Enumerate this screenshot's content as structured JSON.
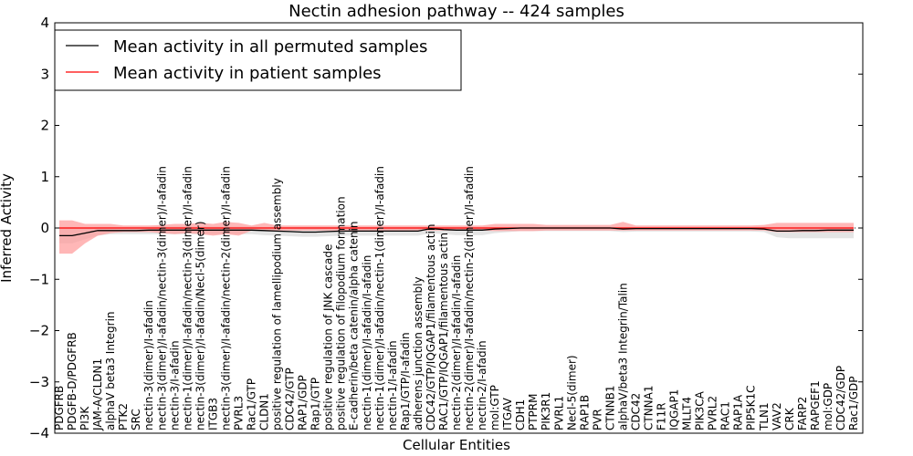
{
  "chart_data": {
    "type": "line",
    "title": "Nectin adhesion pathway -- 424 samples",
    "xlabel": "Cellular Entities",
    "ylabel": "Inferred Activity",
    "ylim": [
      -4,
      4
    ],
    "yticks": [
      -4,
      -3,
      -2,
      -1,
      0,
      1,
      2,
      3,
      4
    ],
    "ytick_labels": [
      "−4",
      "−3",
      "−2",
      "−1",
      "0",
      "1",
      "2",
      "3",
      "4"
    ],
    "legend_position": "top-left",
    "categories": [
      "PDGFRB",
      "PDGFB-D/PDGFRB",
      "PI3K",
      "JAM-A/CLDN1",
      "alphaV beta3 Integrin",
      "PTK2",
      "SRC",
      "nectin-3(dimer)/I-afadin",
      "nectin-3(dimer)/I-afadin/nectin-3(dimer)/I-afadin",
      "nectin-3/I-afadin",
      "nectin-1(dimer)/I-afadin/nectin-3(dimer)/I-afadin",
      "nectin-3(dimer)/I-afadin/Necl-5(dimer)",
      "ITGB3",
      "nectin-3(dimer)/I-afadin/nectin-2(dimer)/I-afadin",
      "PVRL3",
      "Rac1/GTP",
      "CLDN1",
      "positive regulation of lamellipodium assembly",
      "CDC42/GTP",
      "RAP1/GDP",
      "Rap1/GTP",
      "positive regulation of JNK cascade",
      "positive regulation of filopodium formation",
      "E-cadherin/beta catenin/alpha catenin",
      "nectin-1(dimer)/I-afadin/I-afadin",
      "nectin-1(dimer)/I-afadin/nectin-1(dimer)/I-afadin",
      "nectin-1/I-afadin",
      "Rap1/GTP/I-afadin",
      "adherens junction assembly",
      "CDC42/GTP/IQGAP1/filamentous actin",
      "RAC1/GTP/IQGAP1/filamentous actin",
      "nectin-2(dimer)/I-afadin/I-afadin",
      "nectin-2(dimer)/I-afadin/nectin-2(dimer)/I-afadin",
      "nectin-2/I-afadin",
      "mol:GTP",
      "ITGAV",
      "CDH1",
      "PTPRM",
      "PIK3R1",
      "PVRL1",
      "Necl-5(dimer)",
      "RAP1B",
      "PVR",
      "CTNNB1",
      "alphaV/beta3 Integrin/Talin",
      "CDC42",
      "CTNNA1",
      "F11R",
      "IQGAP1",
      "MLLT4",
      "PIK3CA",
      "PVRL2",
      "RAC1",
      "RAP1A",
      "PIP5K1C",
      "TLN1",
      "VAV2",
      "CRK",
      "FARP2",
      "RAPGEF1",
      "mol:GDP",
      "CDC42/GDP",
      "Rac1/GDP"
    ],
    "series": [
      {
        "name": "Mean activity in all permuted samples",
        "color": "#000000",
        "values": [
          -0.15,
          -0.15,
          -0.1,
          -0.05,
          -0.05,
          -0.05,
          -0.05,
          -0.04,
          -0.04,
          -0.04,
          -0.04,
          -0.04,
          -0.04,
          -0.04,
          -0.04,
          -0.04,
          -0.05,
          -0.06,
          -0.07,
          -0.08,
          -0.08,
          -0.07,
          -0.06,
          -0.06,
          -0.06,
          -0.06,
          -0.06,
          -0.06,
          -0.06,
          -0.01,
          -0.03,
          -0.04,
          -0.04,
          -0.04,
          -0.02,
          -0.01,
          0,
          0,
          0,
          0,
          0,
          0,
          0,
          0,
          -0.02,
          -0.01,
          -0.01,
          -0.01,
          -0.01,
          -0.01,
          -0.01,
          -0.01,
          -0.01,
          -0.01,
          -0.01,
          -0.02,
          -0.06,
          -0.06,
          -0.05,
          -0.05,
          -0.04,
          -0.04,
          -0.04
        ],
        "band_upper": [
          0.02,
          0.02,
          0.0,
          0.02,
          0.02,
          0.02,
          0.02,
          0.02,
          0.03,
          0.03,
          0.03,
          0.03,
          0.03,
          0.03,
          0.03,
          0.03,
          0.02,
          0.02,
          0.02,
          0.02,
          0.02,
          0.02,
          0.02,
          0.02,
          0.02,
          0.02,
          0.02,
          0.02,
          0.02,
          0.02,
          0.02,
          0.02,
          0.02,
          0.02,
          0.02,
          0.02,
          0.02,
          0.02,
          0.02,
          0.02,
          0.02,
          0.02,
          0.02,
          0.02,
          0.02,
          0.02,
          0.02,
          0.02,
          0.02,
          0.02,
          0.02,
          0.02,
          0.02,
          0.02,
          0.02,
          0.02,
          0.02,
          0.02,
          0.02,
          0.02,
          0.02,
          0.02,
          0.02
        ],
        "band_lower": [
          -0.3,
          -0.3,
          -0.22,
          -0.15,
          -0.12,
          -0.12,
          -0.12,
          -0.12,
          -0.12,
          -0.12,
          -0.12,
          -0.12,
          -0.12,
          -0.12,
          -0.12,
          -0.12,
          -0.14,
          -0.15,
          -0.16,
          -0.17,
          -0.17,
          -0.16,
          -0.15,
          -0.15,
          -0.15,
          -0.15,
          -0.15,
          -0.15,
          -0.15,
          -0.1,
          -0.12,
          -0.14,
          -0.14,
          -0.14,
          -0.1,
          -0.08,
          -0.06,
          -0.06,
          -0.06,
          -0.06,
          -0.06,
          -0.06,
          -0.06,
          -0.06,
          -0.08,
          -0.07,
          -0.07,
          -0.07,
          -0.07,
          -0.07,
          -0.07,
          -0.07,
          -0.07,
          -0.07,
          -0.07,
          -0.08,
          -0.18,
          -0.2,
          -0.2,
          -0.2,
          -0.2,
          -0.2,
          -0.2
        ]
      },
      {
        "name": "Mean activity in patient samples",
        "color": "#ff0000",
        "values": [
          0,
          0,
          0,
          0,
          0,
          0,
          0,
          0,
          0,
          0,
          0,
          0,
          0,
          0,
          0,
          0,
          0,
          0,
          0,
          0,
          0,
          0,
          0,
          0,
          0,
          0,
          0,
          0,
          0,
          0,
          0,
          0,
          0,
          0,
          0,
          0,
          0,
          0,
          0,
          0,
          0,
          0,
          0,
          0,
          0,
          0,
          0,
          0,
          0,
          0,
          0,
          0,
          0,
          0,
          0,
          0,
          0,
          0,
          0,
          0,
          0,
          0,
          0
        ],
        "band_upper": [
          0.15,
          0.15,
          0.08,
          0.08,
          0.08,
          0.05,
          0.05,
          0.05,
          0.06,
          0.08,
          0.08,
          0.1,
          0.08,
          0.12,
          0.1,
          0.05,
          0.1,
          0.05,
          0.05,
          0.05,
          0.05,
          0.05,
          0.05,
          0.05,
          0.05,
          0.05,
          0.05,
          0.05,
          0.05,
          0.05,
          0.05,
          0.05,
          0.05,
          0.05,
          0.08,
          0.08,
          0.08,
          0.08,
          0.06,
          0.06,
          0.06,
          0.06,
          0.06,
          0.06,
          0.12,
          0.05,
          0.05,
          0.05,
          0.05,
          0.05,
          0.05,
          0.05,
          0.05,
          0.05,
          0.05,
          0.06,
          0.1,
          0.1,
          0.1,
          0.1,
          0.1,
          0.1,
          0.1
        ],
        "band_lower": [
          -0.5,
          -0.5,
          -0.3,
          -0.15,
          -0.1,
          -0.08,
          -0.08,
          -0.08,
          -0.1,
          -0.12,
          -0.1,
          -0.12,
          -0.15,
          -0.12,
          -0.15,
          -0.05,
          -0.05,
          -0.05,
          -0.05,
          -0.05,
          -0.05,
          -0.05,
          -0.05,
          -0.05,
          -0.05,
          -0.05,
          -0.05,
          -0.05,
          -0.05,
          -0.05,
          -0.05,
          -0.05,
          -0.05,
          -0.05,
          -0.06,
          -0.06,
          -0.06,
          -0.06,
          -0.05,
          -0.05,
          -0.05,
          -0.05,
          -0.05,
          -0.05,
          -0.05,
          -0.05,
          -0.05,
          -0.05,
          -0.05,
          -0.05,
          -0.05,
          -0.05,
          -0.05,
          -0.05,
          -0.05,
          -0.05,
          -0.08,
          -0.08,
          -0.08,
          -0.08,
          -0.08,
          -0.08,
          -0.08
        ]
      }
    ],
    "colors": {
      "permuted_band": "#d9d9d9",
      "patient_band": "#ff9999"
    }
  }
}
